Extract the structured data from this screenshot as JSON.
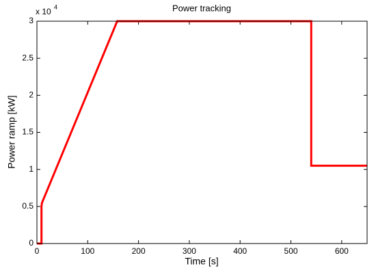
{
  "chart_data": {
    "type": "line",
    "title": "Power tracking",
    "x_label": "Time [s]",
    "y_label": "Power ramp [kW]",
    "y_multiplier": {
      "base": "x 10",
      "exponent": "4"
    },
    "x": [
      0,
      9,
      9,
      10,
      158,
      540,
      540,
      650
    ],
    "series": [
      {
        "name": "Power ramp",
        "color": "#ff0000",
        "values": [
          0,
          0,
          5000,
          5500,
          30000,
          30000,
          10500,
          10500
        ]
      }
    ],
    "xlim": [
      0,
      650
    ],
    "xticks": [
      0,
      100,
      200,
      300,
      400,
      500,
      600
    ],
    "ylim": [
      0,
      30000
    ],
    "yticks": [
      0,
      {
        "value": 5000,
        "label": "0.5"
      },
      {
        "value": 10000,
        "label": "1"
      },
      {
        "value": 15000,
        "label": "1.5"
      },
      {
        "value": 20000,
        "label": "2"
      },
      {
        "value": 25000,
        "label": "2.5"
      },
      {
        "value": 30000,
        "label": "3"
      }
    ],
    "grid": false
  }
}
